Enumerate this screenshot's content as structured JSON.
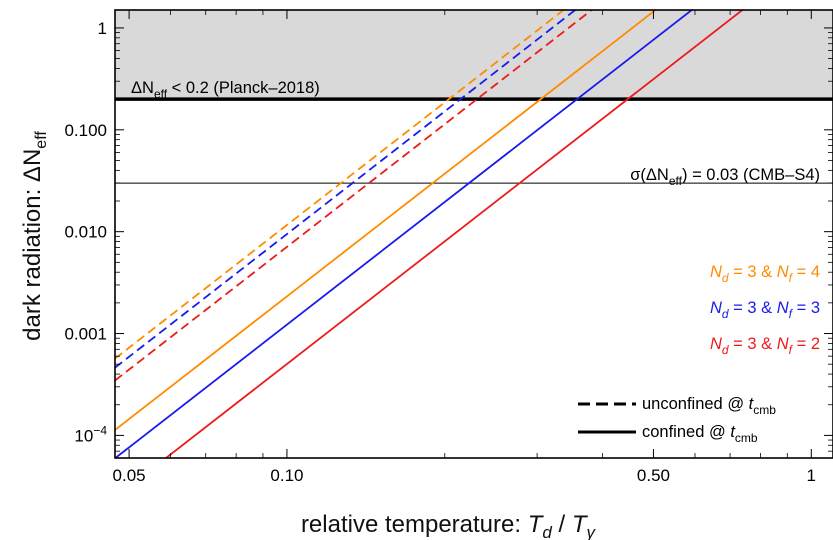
{
  "chart_data": {
    "type": "line",
    "title": "",
    "xlabel_text": "relative temperature:",
    "xlabel_var_main": "T",
    "xlabel_var_sub": "d",
    "xlabel_sep": " / ",
    "xlabel_var2_main": "T",
    "xlabel_var2_sub": "γ",
    "ylabel_text": "dark radiation:",
    "ylabel_sym": "ΔN",
    "ylabel_sub": "eff",
    "xscale": "log",
    "yscale": "log",
    "xlim": [
      0.047,
      1.1
    ],
    "ylim": [
      6e-05,
      1.5
    ],
    "x_ticks": [
      {
        "value": 0.05,
        "label": "0.05"
      },
      {
        "value": 0.1,
        "label": "0.10"
      },
      {
        "value": 0.5,
        "label": "0.50"
      },
      {
        "value": 1,
        "label": "1"
      }
    ],
    "y_ticks": [
      {
        "value": 1,
        "label": "1"
      },
      {
        "value": 0.1,
        "label": "0.100"
      },
      {
        "value": 0.01,
        "label": "0.010"
      },
      {
        "value": 0.001,
        "label": "0.001"
      },
      {
        "value": 0.0001,
        "label_base": "10",
        "label_exp": "−4"
      }
    ],
    "excluded_region": {
      "y_from": 0.2,
      "color": "#d9d9d9"
    },
    "hlines": [
      {
        "y": 0.2,
        "style": "thick",
        "label_pre": "ΔN",
        "label_sub": "eff",
        "label_post": " < 0.2  (Planck–2018)"
      },
      {
        "y": 0.03,
        "style": "thin",
        "label_pre": "σ(ΔN",
        "label_sub": "eff",
        "label_post": ") = 0.03  (CMB–S4)"
      }
    ],
    "series": [
      {
        "Nd": "3",
        "Nf": "4",
        "color": "#ff8c00",
        "line": "dashed",
        "x": [
          0.047,
          1.1
        ],
        "y": [
          0.000567,
          170.5
        ]
      },
      {
        "Nd": "3",
        "Nf": "3",
        "color": "#1a1aee",
        "line": "dashed",
        "x": [
          0.047,
          1.1
        ],
        "y": [
          0.000462,
          139.0
        ]
      },
      {
        "Nd": "3",
        "Nf": "2",
        "color": "#ee1a1a",
        "line": "dashed",
        "x": [
          0.047,
          1.1
        ],
        "y": [
          0.000346,
          104.1
        ]
      },
      {
        "Nd": "3",
        "Nf": "4",
        "color": "#ff8c00",
        "line": "solid",
        "x": [
          0.047,
          1.1
        ],
        "y": [
          0.000113,
          33.96
        ]
      },
      {
        "Nd": "3",
        "Nf": "3",
        "color": "#1a1aee",
        "line": "solid",
        "x": [
          0.047,
          1.1
        ],
        "y": [
          5.96e-05,
          17.94
        ]
      },
      {
        "Nd": "3",
        "Nf": "2",
        "color": "#ee1a1a",
        "line": "solid",
        "x": [
          0.047,
          1.1
        ],
        "y": [
          2.45e-05,
          7.37
        ]
      }
    ],
    "color_legend": [
      {
        "color": "#ff8c00",
        "a": "N",
        "a_sub": "d",
        "a_val": " = 3  &  ",
        "b": "N",
        "b_sub": "f",
        "b_val": " = 4"
      },
      {
        "color": "#1a1aee",
        "a": "N",
        "a_sub": "d",
        "a_val": " = 3  &  ",
        "b": "N",
        "b_sub": "f",
        "b_val": " = 3"
      },
      {
        "color": "#ee1a1a",
        "a": "N",
        "a_sub": "d",
        "a_val": " = 3  &  ",
        "b": "N",
        "b_sub": "f",
        "b_val": " = 2"
      }
    ],
    "style_legend": [
      {
        "line": "dashed",
        "label": "unconfined @ ",
        "var": "t",
        "var_sub": "cmb"
      },
      {
        "line": "solid",
        "label": "confined @ ",
        "var": "t",
        "var_sub": "cmb"
      }
    ],
    "legend_position": "right",
    "grid": false
  }
}
